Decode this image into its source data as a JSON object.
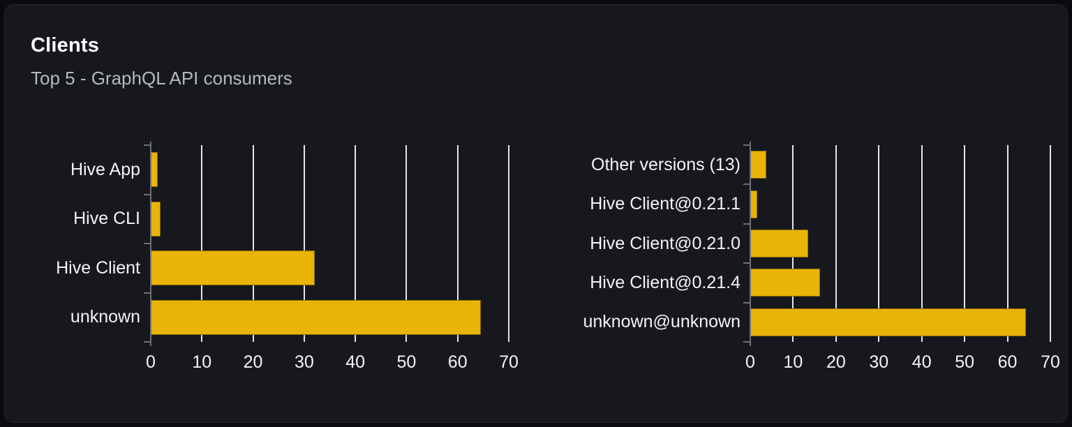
{
  "card": {
    "title": "Clients",
    "subtitle": "Top 5 - GraphQL API consumers"
  },
  "colors": {
    "page_bg": "#0a0b0e",
    "card_bg": "#16181d",
    "card_border": "#24272d",
    "bar": "#e9b308",
    "bar_border": "#8a6d05",
    "gridline": "#e3e6ed",
    "axis": "#6e7178",
    "title_text": "#ffffff",
    "subtitle_text": "#b4b9bf",
    "label_text": "#f3f4f6"
  },
  "chart_data": [
    {
      "type": "bar",
      "name": "clients",
      "orientation": "horizontal",
      "categories": [
        "Hive App",
        "Hive CLI",
        "Hive Client",
        "unknown"
      ],
      "values": [
        1.3,
        1.9,
        32,
        64.5
      ],
      "xlim": [
        0,
        70
      ],
      "xticks": [
        0,
        10,
        20,
        30,
        40,
        50,
        60,
        70
      ],
      "grid": true,
      "legend": "none",
      "title": ""
    },
    {
      "type": "bar",
      "name": "client-versions",
      "orientation": "horizontal",
      "categories": [
        "Other versions (13)",
        "Hive Client@0.21.1",
        "Hive Client@0.21.0",
        "Hive Client@0.21.4",
        "unknown@unknown"
      ],
      "values": [
        3.8,
        1.7,
        13.5,
        16.3,
        64.3
      ],
      "xlim": [
        0,
        70
      ],
      "xticks": [
        0,
        10,
        20,
        30,
        40,
        50,
        60,
        70
      ],
      "grid": true,
      "legend": "none",
      "title": ""
    }
  ]
}
